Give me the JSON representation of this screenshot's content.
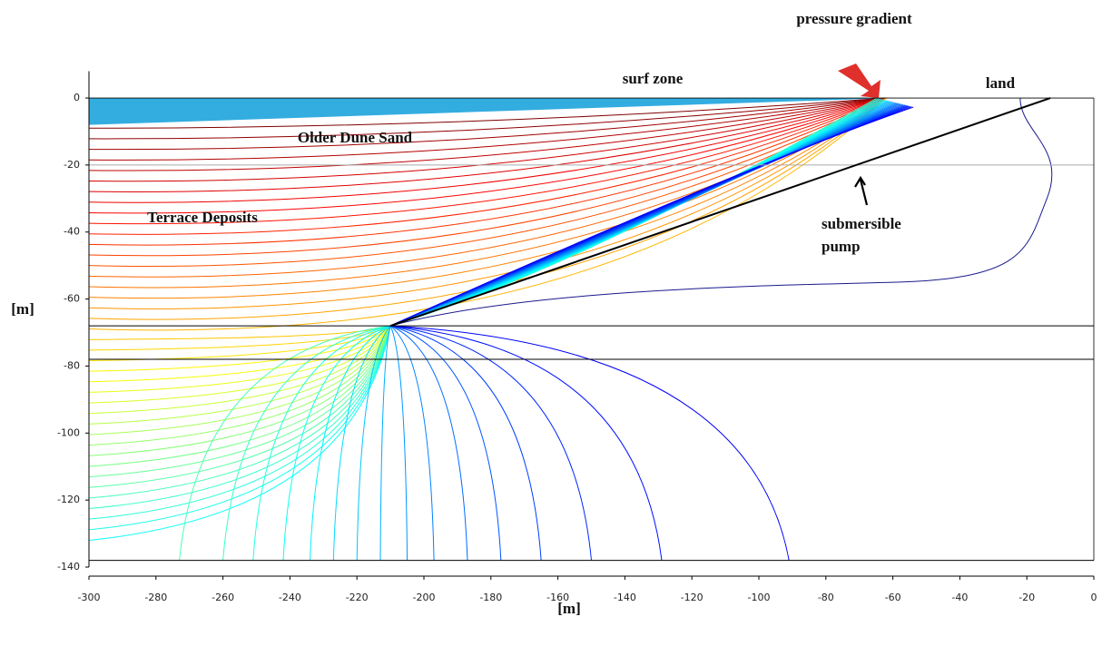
{
  "chart_data": {
    "type": "contour",
    "x_label": "[m]",
    "y_label": "[m]",
    "xlim": [
      -300,
      0
    ],
    "ylim": [
      -140,
      8
    ],
    "xticks": [
      -300,
      -280,
      -260,
      -240,
      -220,
      -200,
      -180,
      -160,
      -140,
      -120,
      -100,
      -80,
      -60,
      -40,
      -20,
      0
    ],
    "yticks": [
      -140,
      -120,
      -100,
      -80,
      -60,
      -40,
      -20,
      0
    ],
    "annotations": [
      "pressure gradient",
      "surf zone",
      "land",
      "Older Dune Sand",
      "Terrace Deposits",
      "submersible",
      "pump"
    ],
    "layer_depths": [
      -20,
      -68,
      -78,
      -138
    ],
    "sea": {
      "x": [
        -300,
        -60
      ],
      "y": [
        -8,
        0
      ]
    },
    "well": {
      "x": [
        -210,
        -13
      ],
      "y": [
        -68,
        0
      ]
    }
  }
}
